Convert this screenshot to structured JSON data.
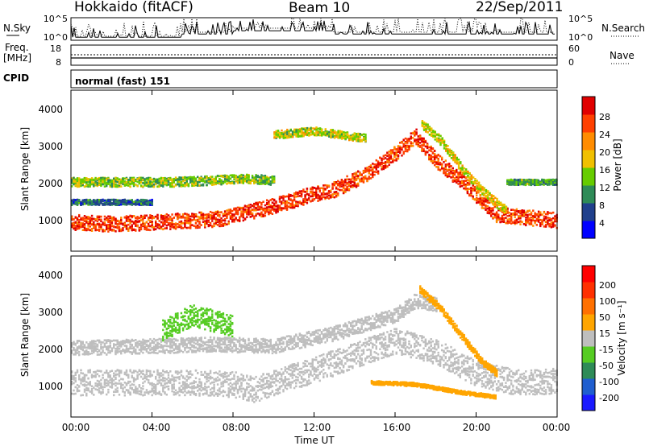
{
  "header": {
    "title": "Hokkaido (fitACF)",
    "beam": "Beam 10",
    "date": "22/Sep/2011"
  },
  "nsky_panel": {
    "left_label": "N.Sky",
    "right_label": "N.Search",
    "left_ticks": [
      "10^5",
      "10^0"
    ],
    "right_ticks": [
      "10^5",
      "10^0"
    ]
  },
  "freq_panel": {
    "left_label_line1": "Freq.",
    "left_label_line2": "[MHz]",
    "left_ticks": [
      "18",
      "8"
    ],
    "right_ticks": [
      "60",
      "0"
    ],
    "right_label": "Nave"
  },
  "cpid_panel": {
    "label": "CPID",
    "text": "normal (fast) 151"
  },
  "power_panel": {
    "ylabel": "Slant Range [km]",
    "yticks": [
      "4000",
      "3000",
      "2000",
      "1000"
    ],
    "colorbar_label": "Power [dB]",
    "colorbar_ticks": [
      "28",
      "24",
      "20",
      "16",
      "12",
      "8",
      "4"
    ],
    "colors": [
      "#0000ff",
      "#20408c",
      "#2e8b57",
      "#66cc00",
      "#f0c000",
      "#ff8c00",
      "#ff4000",
      "#e00000"
    ]
  },
  "velocity_panel": {
    "ylabel": "Slant Range [km]",
    "yticks": [
      "4000",
      "3000",
      "2000",
      "1000"
    ],
    "colorbar_label": "Velocity [m s⁻¹]",
    "colorbar_ticks": [
      "200",
      "100",
      "50",
      "15",
      "-15",
      "-50",
      "-100",
      "-200"
    ],
    "colors": [
      "#1a1aff",
      "#1f5ecf",
      "#2e8b57",
      "#55cc22",
      "#bebebe",
      "#ffa500",
      "#ff7000",
      "#ff3000",
      "#ff0000"
    ]
  },
  "xaxis": {
    "label": "Time UT",
    "ticks": [
      "00:00",
      "04:00",
      "08:00",
      "12:00",
      "16:00",
      "20:00",
      "00:00"
    ]
  },
  "chart_data": {
    "type": "heatmap",
    "title": "Hokkaido (fitACF)",
    "subtitle": "Beam 10",
    "date": "22/Sep/2011",
    "xlabel": "Time UT",
    "ylabel": "Slant Range [km]",
    "x_range_hours": [
      0,
      24
    ],
    "y_range_km": [
      180,
      4600
    ],
    "power": {
      "colorbar_label": "Power [dB]",
      "range": [
        0,
        32
      ],
      "bands": [
        {
          "points": [
            [
              0,
              1000
            ],
            [
              2,
              950
            ],
            [
              4,
              1000
            ],
            [
              6,
              1050
            ],
            [
              7.5,
              1100
            ],
            [
              8.5,
              1250
            ],
            [
              10,
              1450
            ],
            [
              11.5,
              1700
            ],
            [
              13,
              1900
            ],
            [
              14.5,
              2300
            ],
            [
              16,
              2900
            ],
            [
              17,
              3350
            ],
            [
              18,
              2700
            ],
            [
              19.5,
              2000
            ],
            [
              21,
              1200
            ],
            [
              24,
              1050
            ]
          ],
          "width_km": 420,
          "value": 27
        },
        {
          "points": [
            [
              0,
              2100
            ],
            [
              3,
              2100
            ],
            [
              5,
              2100
            ],
            [
              7,
              2150
            ],
            [
              8.5,
              2200
            ],
            [
              10,
              2150
            ]
          ],
          "width_km": 250,
          "value": 14
        },
        {
          "points": [
            [
              0,
              1550
            ],
            [
              2,
              1550
            ],
            [
              4,
              1550
            ]
          ],
          "width_km": 150,
          "value": 8
        },
        {
          "points": [
            [
              17.3,
              3700
            ],
            [
              18.3,
              3200
            ],
            [
              19.5,
              2300
            ],
            [
              20.6,
              1700
            ],
            [
              21.5,
              1300
            ]
          ],
          "width_km": 250,
          "value": 17
        },
        {
          "points": [
            [
              21.5,
              2100
            ],
            [
              24,
              2100
            ]
          ],
          "width_km": 150,
          "value": 12
        },
        {
          "points": [
            [
              10,
              3400
            ],
            [
              12,
              3500
            ],
            [
              14.5,
              3300
            ]
          ],
          "width_km": 220,
          "value": 16
        }
      ]
    },
    "velocity": {
      "colorbar_label": "Velocity [m s⁻¹]",
      "range": [
        -250,
        250
      ],
      "bands": [
        {
          "points": [
            [
              0,
              1150
            ],
            [
              3,
              1150
            ],
            [
              6,
              1150
            ],
            [
              8,
              1100
            ],
            [
              9,
              950
            ],
            [
              10,
              1150
            ],
            [
              12,
              1500
            ],
            [
              14,
              1900
            ],
            [
              16,
              2300
            ],
            [
              18,
              2000
            ],
            [
              20,
              1400
            ],
            [
              22,
              1150
            ],
            [
              24,
              1200
            ]
          ],
          "width_km": 700,
          "value": 0
        },
        {
          "points": [
            [
              0,
              2100
            ],
            [
              4,
              2150
            ],
            [
              7,
              2200
            ],
            [
              10,
              2150
            ],
            [
              13,
              2500
            ],
            [
              16,
              3000
            ],
            [
              17,
              3400
            ],
            [
              18,
              3300
            ]
          ],
          "width_km": 400,
          "value": 0
        },
        {
          "points": [
            [
              17.2,
              3700
            ],
            [
              18.2,
              3200
            ],
            [
              19.3,
              2400
            ],
            [
              20.3,
              1700
            ],
            [
              21,
              1400
            ]
          ],
          "width_km": 200,
          "value": 40
        },
        {
          "points": [
            [
              14.8,
              1150
            ],
            [
              17,
              1100
            ],
            [
              19,
              900
            ],
            [
              21,
              750
            ]
          ],
          "width_km": 100,
          "value": 45
        },
        {
          "points": [
            [
              4.5,
              2600
            ],
            [
              6,
              3000
            ],
            [
              8,
              2700
            ]
          ],
          "width_km": 600,
          "value": -60
        }
      ]
    },
    "n_sky": {
      "scale": "log",
      "ticks": [
        "10^0",
        "10^5"
      ]
    },
    "freq_mhz": {
      "range": [
        8,
        18
      ],
      "value": 11
    },
    "nave": {
      "range": [
        0,
        60
      ]
    },
    "cpid": "normal (fast) 151"
  }
}
